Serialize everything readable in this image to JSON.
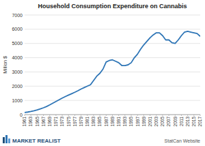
{
  "chart_data": {
    "type": "line",
    "title": "Household Consumption Expenditure on Cannabis",
    "y_label": "Million $",
    "source": "StatCan Website",
    "logo": "MARKET REALIST",
    "x": [
      1961,
      1962,
      1963,
      1964,
      1965,
      1966,
      1967,
      1968,
      1969,
      1970,
      1971,
      1972,
      1973,
      1974,
      1975,
      1976,
      1977,
      1978,
      1979,
      1980,
      1981,
      1982,
      1983,
      1984,
      1985,
      1986,
      1987,
      1988,
      1989,
      1990,
      1991,
      1992,
      1993,
      1994,
      1995,
      1996,
      1997,
      1998,
      1999,
      2000,
      2001,
      2002,
      2003,
      2004,
      2005,
      2006,
      2007,
      2008,
      2009,
      2010,
      2011,
      2012,
      2013,
      2014,
      2015,
      2016,
      2017
    ],
    "series": [
      {
        "name": "Household Consumption Expenditure on Cannabis",
        "color": "#2e75b6",
        "values": [
          150,
          180,
          220,
          270,
          330,
          400,
          480,
          570,
          680,
          800,
          920,
          1040,
          1160,
          1270,
          1370,
          1470,
          1570,
          1680,
          1800,
          1900,
          2000,
          2100,
          2400,
          2700,
          2900,
          3200,
          3700,
          3800,
          3850,
          3750,
          3650,
          3450,
          3450,
          3500,
          3650,
          4000,
          4250,
          4600,
          4900,
          5150,
          5400,
          5600,
          5750,
          5750,
          5550,
          5250,
          5250,
          5050,
          5000,
          5250,
          5550,
          5800,
          5850,
          5800,
          5750,
          5700,
          5500
        ]
      }
    ],
    "xlim": [
      1961,
      2017
    ],
    "xticks": [
      1961,
      1963,
      1965,
      1967,
      1969,
      1971,
      1973,
      1975,
      1977,
      1979,
      1981,
      1983,
      1985,
      1987,
      1989,
      1991,
      1993,
      1995,
      1997,
      1999,
      2001,
      2003,
      2005,
      2007,
      2009,
      2011,
      2013,
      2015,
      2017
    ],
    "ylim": [
      0,
      7000
    ],
    "yticks": [
      0,
      1000,
      2000,
      3000,
      4000,
      5000,
      6000,
      7000
    ],
    "grid": true
  }
}
